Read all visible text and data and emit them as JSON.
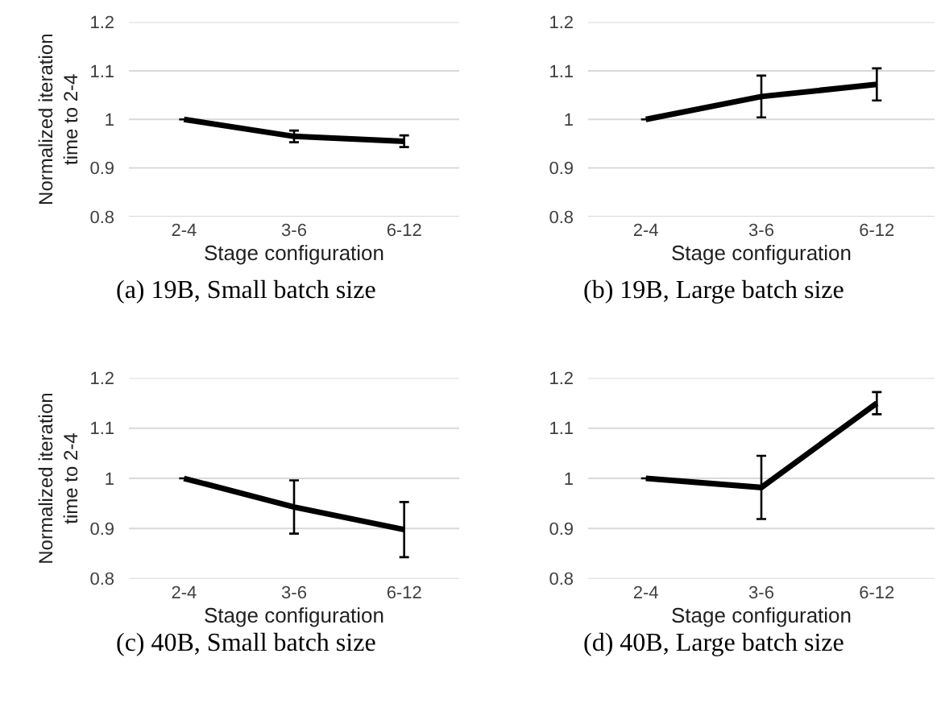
{
  "chart_data": [
    {
      "type": "line",
      "title": "(a) 19B, Small batch size",
      "xlabel": "Stage configuration",
      "ylabel": "Normalized iteration\ntime to 2-4",
      "categories": [
        "2-4",
        "3-6",
        "6-12"
      ],
      "series": [
        {
          "color": "#000000",
          "values": [
            1,
            0.965,
            0.955
          ],
          "errors": [
            null,
            0.012,
            0.012
          ]
        }
      ],
      "ylim": [
        0.8,
        1.2
      ],
      "yticks": [
        0.8,
        0.9,
        1,
        1.1,
        1.2
      ],
      "grid": "y",
      "line_style": "solid"
    },
    {
      "type": "line",
      "title": "(b) 19B, Large batch size",
      "xlabel": "Stage configuration",
      "categories": [
        "2-4",
        "3-6",
        "6-12"
      ],
      "series": [
        {
          "color": "#000000",
          "values": [
            1,
            1.047,
            1.072
          ],
          "errors": [
            null,
            0.043,
            0.033
          ]
        }
      ],
      "ylim": [
        0.8,
        1.2
      ],
      "yticks": [
        0.8,
        0.9,
        1,
        1.1,
        1.2
      ],
      "grid": "y",
      "line_style": "solid"
    },
    {
      "type": "line",
      "title": "(c) 40B, Small batch size",
      "xlabel": "Stage configuration",
      "ylabel": "Normalized iteration\ntime to 2-4",
      "categories": [
        "2-4",
        "3-6",
        "6-12"
      ],
      "series": [
        {
          "color": "#000000",
          "values": [
            1,
            0.943,
            0.898
          ],
          "errors": [
            null,
            0.053,
            0.055
          ]
        }
      ],
      "ylim": [
        0.8,
        1.2
      ],
      "yticks": [
        0.8,
        0.9,
        1,
        1.1,
        1.2
      ],
      "grid": "y",
      "line_style": "solid"
    },
    {
      "type": "line",
      "title": "(d) 40B, Large batch size",
      "xlabel": "Stage configuration",
      "categories": [
        "2-4",
        "3-6",
        "6-12"
      ],
      "series": [
        {
          "color": "#000000",
          "values": [
            1,
            0.982,
            1.15
          ],
          "errors": [
            null,
            0.063,
            0.022
          ]
        }
      ],
      "ylim": [
        0.8,
        1.2
      ],
      "yticks": [
        0.8,
        0.9,
        1,
        1.1,
        1.2
      ],
      "grid": "y",
      "line_style": "solid"
    }
  ]
}
